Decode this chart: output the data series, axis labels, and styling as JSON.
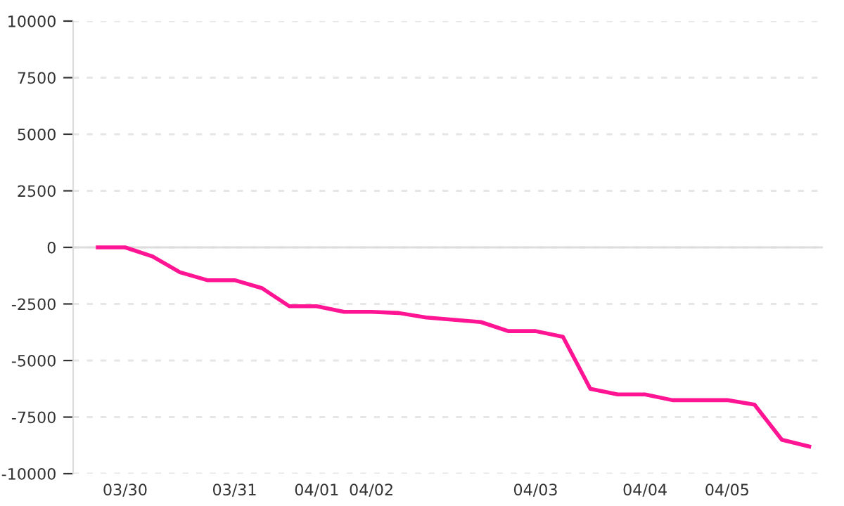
{
  "chart_data": {
    "type": "line",
    "categories": [
      null,
      "03/30",
      null,
      null,
      null,
      "03/31",
      null,
      null,
      "04/01",
      null,
      "04/02",
      null,
      null,
      null,
      null,
      null,
      "04/03",
      null,
      null,
      null,
      "04/04",
      null,
      null,
      "04/05",
      null,
      null,
      null
    ],
    "series": [
      {
        "color": "#ff1493",
        "values": [
          0,
          0,
          -400,
          -1100,
          -1450,
          -1450,
          -1800,
          -2600,
          -2600,
          -2850,
          -2850,
          -2900,
          -3100,
          -3200,
          -3300,
          -3700,
          -3700,
          -3950,
          -6250,
          -6500,
          -6500,
          -6750,
          -6750,
          -6750,
          -6950,
          -8500,
          -8800
        ]
      }
    ],
    "ylim": [
      -10000,
      10000
    ],
    "yticks": [
      -10000,
      -7500,
      -5000,
      -2500,
      0,
      2500,
      5000,
      7500,
      10000
    ],
    "grid": "y",
    "marker": "none",
    "line_style": "solid",
    "legend": false,
    "ref_lines": [
      {
        "axis": "y",
        "value": 0,
        "color": "#dddddd",
        "line_style": "solid"
      }
    ]
  }
}
